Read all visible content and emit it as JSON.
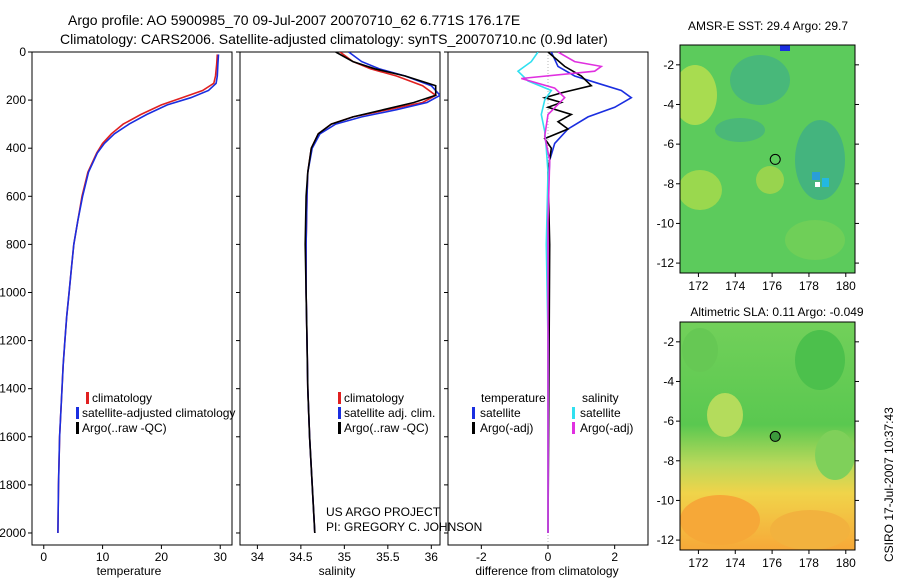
{
  "header": {
    "line1": "Argo profile: AO 5900985_70 09-Jul-2007 20070710_62 6.771S 176.17E",
    "line2": "Climatology: CARS2006. Satellite-adjusted climatology: synTS_20070710.nc (0.9d later)"
  },
  "colors": {
    "climatology": "#e02020",
    "satellite": "#1a2ee0",
    "argo": "#000000",
    "sal_satellite": "#30e0f0",
    "sal_argo": "#e030e0"
  },
  "chart_data": [
    {
      "type": "line",
      "name": "temperature-profile",
      "xlabel": "temperature",
      "xlim": [
        -2,
        32
      ],
      "xticks": [
        "0",
        "10",
        "20",
        "30"
      ],
      "ylim": [
        0,
        2050
      ],
      "yticks": [
        "0",
        "200",
        "400",
        "600",
        "800",
        "1000",
        "1200",
        "1400",
        "1600",
        "1800",
        "2000"
      ],
      "legend": [
        "climatology",
        "satellite-adjusted climatology",
        "Argo(..raw -QC)"
      ],
      "series": [
        {
          "key": "clim",
          "color_key": "climatology",
          "x": [
            29.5,
            29.4,
            29.2,
            28.9,
            27.0,
            23.5,
            20.0,
            16.5,
            13.5,
            11.5,
            10.0,
            9.0,
            7.5,
            6.5,
            5.8,
            5.1,
            4.7,
            4.3,
            3.9,
            3.6,
            3.3,
            3.1,
            2.9,
            2.7,
            2.5,
            2.4
          ],
          "y": [
            10,
            50,
            100,
            130,
            160,
            190,
            220,
            260,
            300,
            340,
            380,
            420,
            500,
            600,
            700,
            800,
            900,
            1000,
            1100,
            1200,
            1300,
            1400,
            1500,
            1600,
            1800,
            2000
          ]
        },
        {
          "key": "sat",
          "color_key": "satellite",
          "x": [
            29.7,
            29.6,
            29.5,
            29.3,
            28.0,
            25.0,
            21.0,
            17.5,
            14.5,
            12.0,
            10.3,
            9.1,
            7.6,
            6.6,
            5.8,
            5.1,
            4.7,
            4.3,
            3.9,
            3.6,
            3.3,
            3.1,
            2.9,
            2.7,
            2.5,
            2.4
          ],
          "y": [
            10,
            50,
            100,
            130,
            160,
            190,
            220,
            260,
            300,
            340,
            380,
            420,
            500,
            600,
            700,
            800,
            900,
            1000,
            1100,
            1200,
            1300,
            1400,
            1500,
            1600,
            1800,
            2000
          ]
        }
      ]
    },
    {
      "type": "line",
      "name": "salinity-profile",
      "xlabel": "salinity",
      "xlim": [
        33.8,
        36.1
      ],
      "xticks": [
        "34",
        "34.5",
        "35",
        "35.5",
        "36"
      ],
      "ylim": [
        0,
        2050
      ],
      "legend": [
        "climatology",
        "satellite adj. clim.",
        "Argo(..raw -QC)"
      ],
      "series": [
        {
          "key": "clim",
          "color_key": "climatology",
          "x": [
            34.95,
            35.1,
            35.3,
            35.6,
            35.9,
            36.05,
            35.9,
            35.5,
            35.1,
            34.85,
            34.7,
            34.62,
            34.58,
            34.57,
            34.56,
            34.56,
            34.57,
            34.58,
            34.6,
            34.63,
            34.66
          ],
          "y": [
            0,
            40,
            70,
            100,
            140,
            180,
            210,
            240,
            270,
            300,
            340,
            400,
            500,
            600,
            800,
            1000,
            1200,
            1400,
            1600,
            1800,
            2000
          ]
        },
        {
          "key": "sat",
          "color_key": "satellite",
          "x": [
            35.05,
            35.2,
            35.4,
            35.7,
            36.0,
            36.1,
            35.95,
            35.6,
            35.2,
            34.9,
            34.72,
            34.63,
            34.58,
            34.57,
            34.56,
            34.56,
            34.57,
            34.58,
            34.6,
            34.63,
            34.66
          ],
          "y": [
            0,
            40,
            70,
            100,
            140,
            180,
            210,
            240,
            270,
            300,
            340,
            400,
            500,
            600,
            800,
            1000,
            1200,
            1400,
            1600,
            1800,
            2000
          ]
        },
        {
          "key": "argo",
          "color_key": "argo",
          "x": [
            34.9,
            35.1,
            35.35,
            35.7,
            36.05,
            36.05,
            35.8,
            35.45,
            35.1,
            34.85,
            34.7,
            34.62,
            34.58,
            34.56,
            34.55,
            34.56,
            34.57,
            34.58,
            34.6,
            34.63,
            34.66
          ],
          "y": [
            0,
            40,
            70,
            100,
            140,
            180,
            210,
            240,
            270,
            300,
            340,
            400,
            500,
            600,
            800,
            1000,
            1200,
            1400,
            1600,
            1800,
            2000
          ]
        }
      ],
      "annotations": [
        "US ARGO PROJECT",
        "PI: GREGORY C. JOHNSON"
      ]
    },
    {
      "type": "line",
      "name": "difference-profile",
      "xlabel": "difference from climatology",
      "xlim": [
        -3,
        3
      ],
      "xticks": [
        "-2",
        "0",
        "2"
      ],
      "ylim": [
        0,
        2050
      ],
      "legend": {
        "temperature": [
          "satellite",
          "Argo(-adj)"
        ],
        "salinity": [
          "satellite",
          "Argo(-adj)"
        ]
      },
      "legend_titles": [
        "temperature",
        "salinity"
      ],
      "series": [
        {
          "key": "t_sat",
          "color_key": "satellite",
          "x": [
            0.1,
            0.3,
            0.8,
            1.5,
            2.2,
            2.5,
            2.0,
            1.2,
            0.6,
            0.2,
            0.05,
            0.0,
            0.0,
            0.0
          ],
          "y": [
            0,
            60,
            100,
            130,
            160,
            190,
            230,
            270,
            320,
            380,
            450,
            600,
            1000,
            2000
          ]
        },
        {
          "key": "t_argo",
          "color_key": "argo",
          "x": [
            0.0,
            0.5,
            1.0,
            1.3,
            0.4,
            -0.1,
            0.4,
            0.0,
            0.7,
            0.3,
            0.6,
            -0.1,
            0.1,
            0.0,
            0.05,
            0.0
          ],
          "y": [
            0,
            60,
            100,
            140,
            170,
            190,
            210,
            230,
            260,
            290,
            320,
            360,
            400,
            500,
            800,
            2000
          ]
        },
        {
          "key": "s_sat",
          "color_key": "sal_satellite",
          "x": [
            -0.3,
            -0.5,
            -0.9,
            -0.6,
            0.1,
            -0.1,
            -0.2,
            -0.1,
            -0.05,
            0.0,
            -0.05,
            0.0,
            0.0
          ],
          "y": [
            0,
            40,
            80,
            120,
            160,
            200,
            260,
            330,
            400,
            500,
            800,
            1200,
            2000
          ]
        },
        {
          "key": "s_argo",
          "color_key": "sal_argo",
          "x": [
            0.3,
            0.8,
            1.6,
            1.4,
            -0.8,
            0.2,
            0.5,
            0.0,
            -0.1,
            0.05,
            0.0,
            0.0
          ],
          "y": [
            0,
            40,
            60,
            80,
            110,
            150,
            190,
            260,
            350,
            450,
            700,
            2000
          ]
        }
      ]
    },
    {
      "type": "heatmap",
      "name": "sst-map",
      "title": "AMSR-E SST: 29.4 Argo: 29.7",
      "xlim": [
        171,
        180.5
      ],
      "ylim": [
        -12.5,
        -1
      ],
      "xticks": [
        "172",
        "174",
        "176",
        "178",
        "180"
      ],
      "yticks": [
        "-2",
        "-4",
        "-6",
        "-8",
        "-10",
        "-12"
      ],
      "float_position": {
        "lon": 176.17,
        "lat": -6.771
      }
    },
    {
      "type": "heatmap",
      "name": "sla-map",
      "title": "Altimetric SLA: 0.11 Argo: -0.049",
      "xlim": [
        171,
        180.5
      ],
      "ylim": [
        -12.5,
        -1
      ],
      "xticks": [
        "172",
        "174",
        "176",
        "178",
        "180"
      ],
      "yticks": [
        "-2",
        "-4",
        "-6",
        "-8",
        "-10",
        "-12"
      ],
      "float_position": {
        "lon": 176.17,
        "lat": -6.771
      }
    }
  ],
  "side_label": "CSIRO 17-Jul-2007 10:37:43"
}
